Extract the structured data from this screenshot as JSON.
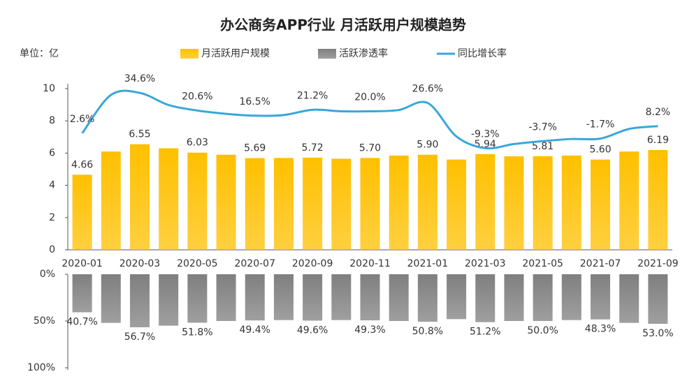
{
  "chart_data": [
    {
      "type": "bar",
      "title": "办公商务APP行业 月活跃用户规模趋势",
      "unit_label": "单位：亿",
      "categories": [
        "2020-01",
        null,
        "2020-03",
        null,
        "2020-05",
        null,
        "2020-07",
        null,
        "2020-09",
        null,
        "2020-11",
        null,
        "2021-01",
        null,
        "2021-03",
        null,
        "2021-05",
        null,
        "2021-07",
        null,
        "2021-09"
      ],
      "ylim": [
        0,
        10
      ],
      "yticks": [
        0,
        2,
        4,
        6,
        8,
        10
      ],
      "y2lim": [
        -90,
        38
      ],
      "series": [
        {
          "name": "月活跃用户规模",
          "type": "bar",
          "color": "#FFC000",
          "values": [
            4.66,
            6.1,
            6.55,
            6.3,
            6.03,
            5.9,
            5.69,
            5.7,
            5.72,
            5.65,
            5.7,
            5.85,
            5.9,
            5.6,
            5.94,
            5.8,
            5.81,
            5.85,
            5.6,
            6.1,
            6.19
          ],
          "value_labels": [
            "4.66",
            null,
            "6.55",
            null,
            "6.03",
            null,
            "5.69",
            null,
            "5.72",
            null,
            "5.70",
            null,
            "5.90",
            null,
            "5.94",
            null,
            "5.81",
            null,
            "5.60",
            null,
            "6.19"
          ]
        },
        {
          "name": "同比增长率",
          "type": "line",
          "axis": "y2",
          "color": "#3AA6DA",
          "values": [
            2.6,
            33,
            34.6,
            25,
            20.6,
            18,
            16.5,
            17,
            21.2,
            20,
            20.0,
            21,
            26.6,
            0,
            -9.3,
            -6,
            -3.7,
            -2,
            -1.7,
            6,
            8.2
          ],
          "value_labels": [
            "2.6%",
            null,
            "34.6%",
            null,
            "20.6%",
            null,
            "16.5%",
            null,
            "21.2%",
            null,
            "20.0%",
            null,
            "26.6%",
            null,
            "-9.3%",
            null,
            "-3.7%",
            null,
            "-1.7%",
            null,
            "8.2%"
          ]
        }
      ]
    },
    {
      "type": "bar",
      "y_reversed": true,
      "ylim": [
        0,
        100
      ],
      "yticks": [
        {
          "value": 0,
          "label": "0%"
        },
        {
          "value": 50,
          "label": "50%"
        },
        {
          "value": 100,
          "label": "100%"
        }
      ],
      "series": [
        {
          "name": "活跃渗透率",
          "type": "bar",
          "color": "#7F7F7F",
          "values": [
            40.7,
            52,
            56.7,
            55,
            51.8,
            50,
            49.4,
            49,
            49.6,
            49,
            49.3,
            50,
            50.8,
            48,
            51.2,
            50,
            50.0,
            49,
            48.3,
            52,
            53.0
          ],
          "value_labels": [
            "40.7%",
            null,
            "56.7%",
            null,
            "51.8%",
            null,
            "49.4%",
            null,
            "49.6%",
            null,
            "49.3%",
            null,
            "50.8%",
            null,
            "51.2%",
            null,
            "50.0%",
            null,
            "48.3%",
            null,
            "53.0%"
          ]
        }
      ]
    }
  ]
}
